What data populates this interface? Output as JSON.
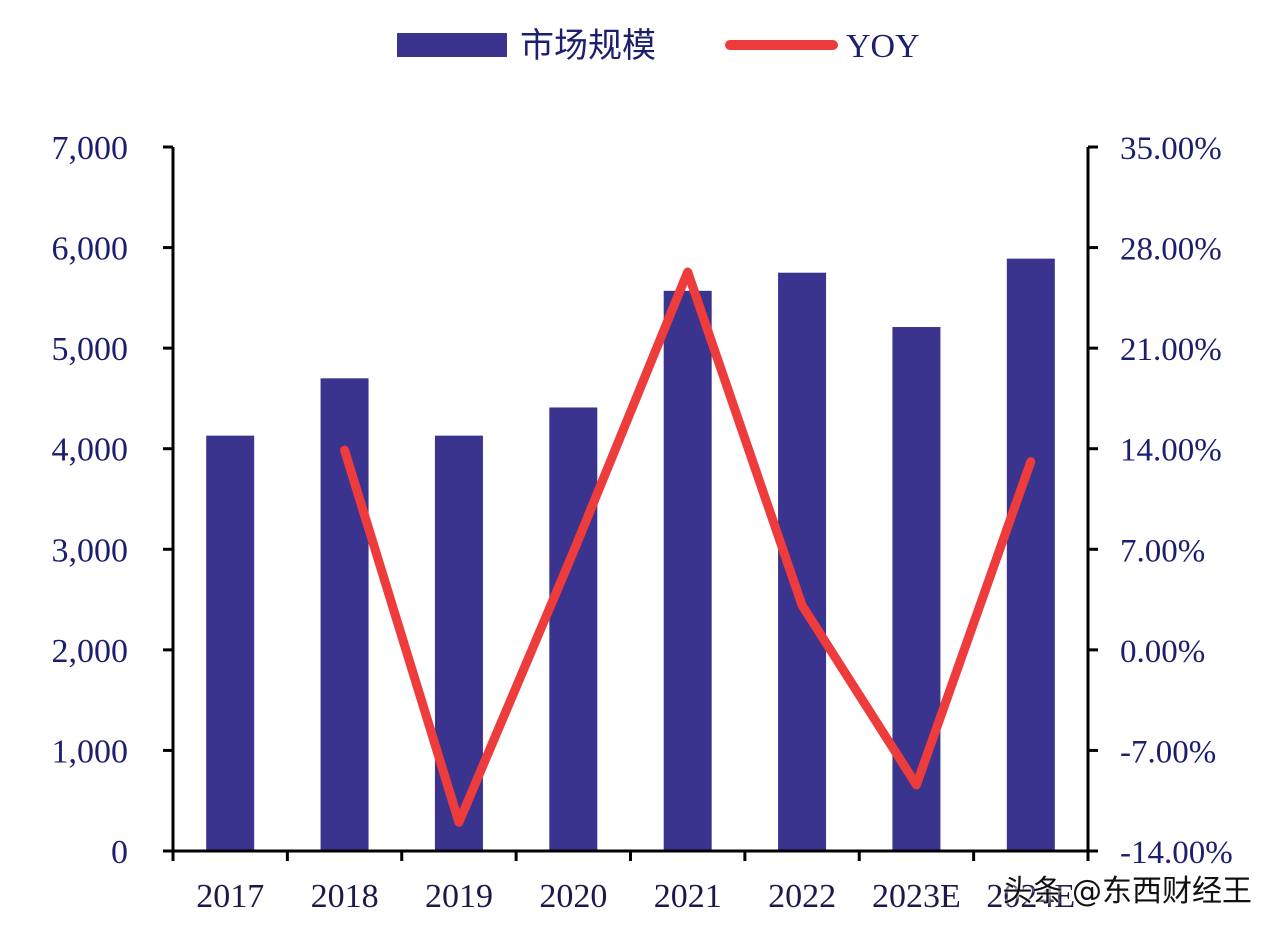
{
  "chart_data": {
    "type": "bar",
    "categories": [
      "2017",
      "2018",
      "2019",
      "2020",
      "2021",
      "2022",
      "2023E",
      "2024E"
    ],
    "series": [
      {
        "name": "市场规模",
        "type": "bar",
        "axis": "left",
        "color": "#3b348e",
        "values": [
          4130,
          4700,
          4130,
          4410,
          5570,
          5750,
          5210,
          5890
        ]
      },
      {
        "name": "YOY",
        "type": "line",
        "axis": "right",
        "color": "#ee3b3b",
        "values": [
          null,
          13.9,
          -12.0,
          6.8,
          26.3,
          3.1,
          -9.4,
          13.1
        ]
      }
    ],
    "y_left": {
      "ylim": [
        0,
        7000
      ],
      "tick_labels": [
        "0",
        "1,000",
        "2,000",
        "3,000",
        "4,000",
        "5,000",
        "6,000",
        "7,000"
      ]
    },
    "y_right": {
      "ylim": [
        -14,
        35
      ],
      "unit": "%",
      "tick_labels": [
        "-14.00%",
        "-7.00%",
        "0.00%",
        "7.00%",
        "14.00%",
        "21.00%",
        "28.00%",
        "35.00%"
      ]
    },
    "legend": {
      "placement": "top-center",
      "entries": [
        "市场规模",
        "YOY"
      ]
    },
    "grid": false
  },
  "watermark": "头条 @东西财经王"
}
